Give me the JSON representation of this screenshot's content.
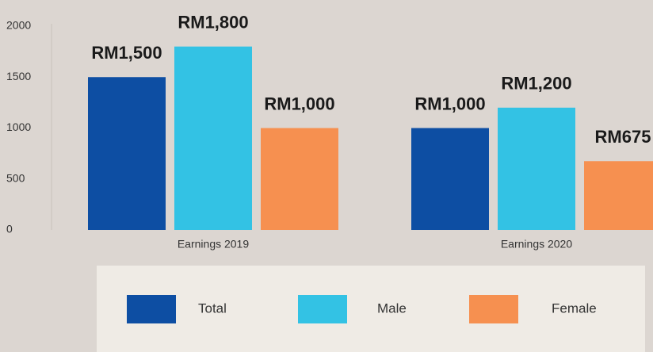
{
  "chart_data": {
    "type": "bar",
    "categories": [
      "Earnings 2019",
      "Earnings 2020"
    ],
    "series": [
      {
        "name": "Total",
        "color": "#0d4ea3",
        "values": [
          1500,
          1000
        ],
        "value_labels": [
          "RM1,500",
          "RM1,000"
        ]
      },
      {
        "name": "Male",
        "color": "#33c2e4",
        "values": [
          1800,
          1200
        ],
        "value_labels": [
          "RM1,800",
          "RM1,200"
        ]
      },
      {
        "name": "Female",
        "color": "#f69050",
        "values": [
          1000,
          675
        ],
        "value_labels": [
          "RM1,000",
          "RM675"
        ]
      }
    ],
    "ylim": [
      0,
      2000
    ],
    "yticks": [
      0,
      500,
      1000,
      1500,
      2000
    ],
    "grid": false,
    "legend": "bottom"
  }
}
